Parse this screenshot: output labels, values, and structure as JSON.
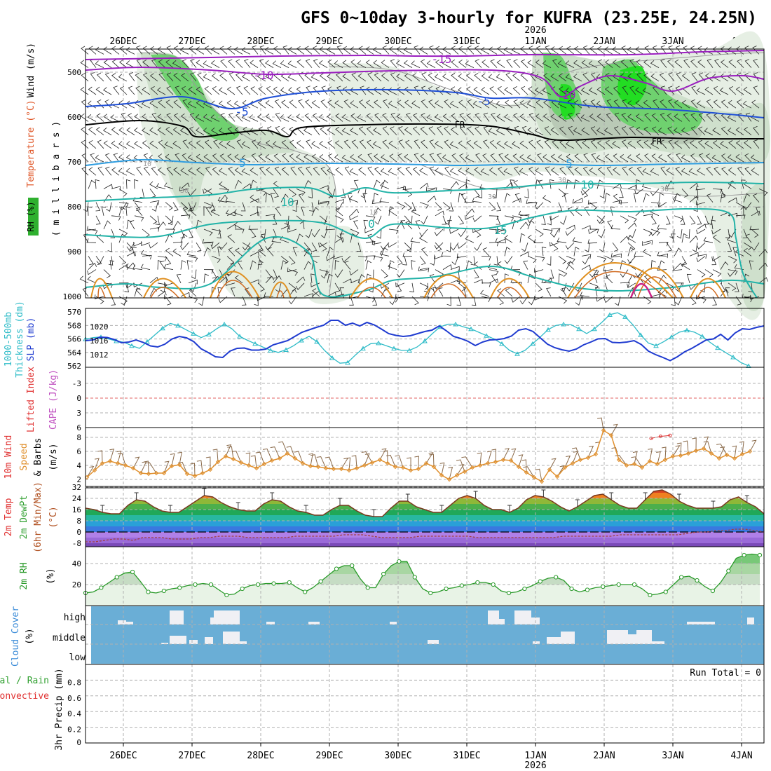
{
  "title": "GFS 0~10day 3-hourly for KUFRA (23.25E, 24.25N)",
  "year_label": "2026",
  "colors": {
    "grid": "#b0b0b0",
    "frame": "#000000",
    "purple": "#9a1fbf",
    "blue": "#1f4fd6",
    "lightblue": "#2f9de0",
    "teal": "#22b3a8",
    "green_rh": "#6fd16f",
    "bright_green": "#22dd22",
    "orange": "#e09020",
    "magenta": "#cc2288",
    "slp": "#1f3bd0",
    "thick": "#2fbcc8",
    "wind10": "#e0902e",
    "rh2m": "#2a9a2a",
    "cloud_bg": "#6aaed6",
    "cloud_fill": "#f0f0f4"
  },
  "chart_data": {
    "x_axis": {
      "date_labels": [
        "26DEC",
        "27DEC",
        "28DEC",
        "29DEC",
        "30DEC",
        "31DEC",
        "1JAN",
        "2JAN",
        "3JAN",
        "4JAN"
      ],
      "year_at": "1JAN",
      "year": "2026"
    },
    "panels": [
      {
        "id": "upper",
        "type": "contour",
        "y_label_parts": [
          {
            "text": "RH (%)",
            "color": "#2aa02a"
          },
          {
            "text": "Temperature (°C)",
            "color": "#e0582a"
          },
          {
            "text": "Wind (m/s)",
            "color": "#000000"
          },
          {
            "text": "( m i l l i b a r s )",
            "color": "#000000"
          }
        ],
        "y_ticks": [
          "500",
          "600",
          "700",
          "800",
          "900",
          "1000"
        ],
        "labels": {
          "t_m15": "-15",
          "t_m10a": "-10",
          "t_m10b": "-10",
          "t_m5a": "-5",
          "t_m5b": "-5",
          "fr1": "FR",
          "fr2": "FR",
          "t_5a": "5",
          "t_5b": "5",
          "t_10a": "10",
          "t_10b": "10",
          "t_0": "0",
          "t_15": "15",
          "rh10": "10",
          "rh30a": "30",
          "rh30b": "30",
          "rh30c": "30",
          "rh30d": "30",
          "rh10b": "10"
        }
      },
      {
        "id": "slp",
        "type": "line",
        "y_label_parts": [
          {
            "text": "1000-500mb",
            "color": "#2fbcc8"
          },
          {
            "text": "Thickness (dm)",
            "color": "#2fbcc8"
          },
          {
            "text": "SLP (mb)",
            "color": "#1f3bd0"
          }
        ],
        "thickness_ticks": [
          "570",
          "568",
          "566",
          "564",
          "562"
        ],
        "slp_ticks": [
          "1020",
          "1016",
          "1012"
        ],
        "series": [
          {
            "name": "Thickness",
            "unit": "dm",
            "values": [
              566.0,
              566.2,
              566.3,
              566.0,
              565.7,
              565.5,
              565.0,
              564.6,
              565.6,
              566.6,
              567.6,
              568.3,
              568.0,
              567.4,
              566.8,
              566.2,
              566.7,
              567.5,
              568.2,
              567.5,
              566.4,
              565.8,
              565.3,
              564.8,
              564.3,
              564.0,
              564.4,
              565.0,
              565.8,
              566.4,
              565.6,
              564.3,
              563.2,
              562.4,
              562.5,
              563.6,
              564.6,
              565.3,
              565.4,
              565.0,
              564.6,
              564.3,
              564.3,
              564.8,
              565.7,
              566.8,
              567.8,
              568.2,
              568.2,
              567.8,
              567.5,
              567.0,
              566.5,
              566.0,
              565.3,
              564.3,
              563.8,
              564.3,
              565.3,
              566.3,
              567.4,
              568.0,
              568.2,
              568.1,
              567.5,
              566.8,
              567.5,
              568.5,
              569.6,
              569.9,
              569.3,
              568.1,
              566.6,
              565.4,
              565.0,
              565.6,
              566.3,
              567.0,
              567.3,
              567.0,
              566.4,
              565.5,
              564.7,
              564.0,
              563.3,
              562.5,
              562.0
            ]
          },
          {
            "name": "SLP",
            "unit": "mb",
            "values": [
              1016.0,
              1016.2,
              1017.0,
              1016.9,
              1016.3,
              1015.4,
              1015.6,
              1016.2,
              1015.5,
              1014.5,
              1014.2,
              1015.0,
              1016.5,
              1017.2,
              1016.8,
              1015.7,
              1013.7,
              1012.6,
              1011.4,
              1011.2,
              1013.0,
              1013.8,
              1013.9,
              1013.3,
              1013.3,
              1013.6,
              1014.8,
              1015.4,
              1016.0,
              1017.2,
              1018.4,
              1019.1,
              1019.8,
              1020.4,
              1021.8,
              1021.8,
              1020.4,
              1021.0,
              1020.2,
              1021.2,
              1020.5,
              1019.3,
              1018.0,
              1017.5,
              1017.2,
              1017.4,
              1018.0,
              1018.6,
              1019.0,
              1020.2,
              1018.8,
              1017.2,
              1016.6,
              1015.8,
              1014.6,
              1015.6,
              1016.2,
              1016.3,
              1016.6,
              1017.3,
              1019.0,
              1019.4,
              1018.6,
              1016.8,
              1015.0,
              1014.0,
              1013.4,
              1013.0,
              1013.6,
              1014.8,
              1015.6,
              1016.5,
              1016.6,
              1015.5,
              1015.4,
              1015.6,
              1016.0,
              1014.9,
              1013.0,
              1012.0,
              1011.2,
              1010.3,
              1011.4,
              1012.8,
              1013.8,
              1015.0,
              1016.2,
              1016.5,
              1017.8,
              1016.2,
              1018.2,
              1019.4,
              1019.2,
              1019.8,
              1020.2
            ]
          }
        ]
      },
      {
        "id": "cape",
        "type": "line",
        "y_label_parts": [
          {
            "text": "CAPE (J/kg)",
            "color": "#c050c0"
          },
          {
            "text": "Lifted Index",
            "color": "#e03030"
          }
        ],
        "y_ticks": [
          "-3",
          "0",
          "3",
          "6"
        ],
        "li_segment": [
          [
            60.0,
            8.2
          ],
          [
            61.0,
            7.8
          ],
          [
            62.0,
            7.6
          ]
        ]
      },
      {
        "id": "wind10",
        "type": "line",
        "y_label_parts": [
          {
            "text": "10m Wind",
            "color": "#e03030"
          },
          {
            "text": "Speed",
            "color": "#e0902e"
          },
          {
            "text": "& Barbs",
            "color": "#000000"
          },
          {
            "text": "(m/s)",
            "color": "#000000"
          }
        ],
        "y_ticks": [
          "8",
          "6",
          "4",
          "2"
        ],
        "series": [
          {
            "name": "10m wind speed",
            "unit": "m/s",
            "values": [
              2.3,
              3.3,
              4.3,
              4.6,
              4.3,
              4.0,
              3.6,
              2.9,
              2.8,
              2.9,
              2.9,
              3.9,
              4.1,
              2.8,
              2.5,
              2.9,
              3.4,
              4.5,
              5.3,
              4.9,
              4.4,
              4.0,
              3.6,
              4.2,
              4.7,
              5.0,
              5.7,
              5.0,
              4.3,
              3.9,
              3.8,
              3.6,
              3.5,
              3.5,
              3.3,
              3.6,
              4.0,
              4.4,
              4.8,
              4.3,
              3.8,
              3.7,
              3.3,
              3.5,
              4.3,
              3.8,
              2.6,
              2.0,
              2.6,
              3.1,
              3.7,
              4.0,
              4.3,
              4.5,
              4.8,
              4.7,
              3.8,
              3.0,
              2.3,
              1.7,
              3.4,
              2.4,
              3.7,
              4.3,
              4.8,
              5.1,
              5.6,
              9.0,
              8.3,
              4.8,
              4.0,
              4.2,
              3.7,
              4.6,
              4.2,
              4.8,
              5.3,
              5.4,
              5.7,
              6.1,
              6.4,
              5.7,
              5.0,
              5.5,
              5.0,
              5.6,
              6.0
            ]
          }
        ]
      },
      {
        "id": "temp",
        "type": "area",
        "y_label_parts": [
          {
            "text": "2m Temp",
            "color": "#e03030"
          },
          {
            "text": "2m DewPt",
            "color": "#30a030"
          },
          {
            "text": "(6hr Min/Max)",
            "color": "#b05020"
          },
          {
            "text": "(°C)",
            "color": "#b05020"
          }
        ],
        "y_ticks": [
          "32",
          "24",
          "16",
          "8",
          "0",
          "-8"
        ],
        "series": [
          {
            "name": "2m Temp",
            "unit": "°C",
            "values": [
              17,
              16,
              14,
              13,
              13,
              19,
              23,
              22,
              18,
              15,
              14,
              14,
              18,
              22,
              26,
              25,
              21,
              18,
              16,
              15,
              15,
              20,
              23,
              22,
              18,
              15,
              14,
              12,
              12,
              16,
              19,
              19,
              15,
              12,
              11,
              11,
              17,
              22,
              22,
              18,
              16,
              14,
              14,
              19,
              24,
              26,
              24,
              19,
              16,
              16,
              14,
              17,
              23,
              26,
              25,
              22,
              18,
              15,
              18,
              22,
              26,
              27,
              23,
              19,
              17,
              17,
              23,
              29,
              30,
              27,
              22,
              19,
              17,
              17,
              17,
              18,
              23,
              25,
              21,
              18,
              13
            ]
          },
          {
            "name": "2m DewPt",
            "unit": "°C",
            "values": [
              -7,
              -7,
              -6,
              -5,
              -5,
              -6,
              -4,
              -4,
              -4,
              -5,
              -5,
              -5,
              -4,
              -4,
              -3,
              -3,
              -3,
              -4,
              -4,
              -4,
              -4,
              -4,
              -3,
              -3,
              -3,
              -3,
              -3,
              -2,
              -2,
              -2,
              -3,
              -4,
              -4,
              -4,
              -4,
              -3,
              -3,
              -3,
              -3,
              -3,
              -3,
              -4,
              -4,
              -4,
              -4,
              -4,
              -4,
              -4,
              -4,
              -4,
              -3,
              -3,
              -3,
              -3,
              -3,
              -3,
              -2,
              -2,
              -2,
              -2,
              -2,
              -2,
              -2,
              -1,
              0,
              0,
              1,
              1,
              2,
              2,
              1,
              0
            ]
          }
        ]
      },
      {
        "id": "rh2m",
        "type": "area",
        "y_label_parts": [
          {
            "text": "2m RH",
            "color": "#2a9a2a"
          },
          {
            "text": "(%)",
            "color": "#000000"
          }
        ],
        "y_ticks": [
          "40",
          "20"
        ],
        "series": [
          {
            "name": "2m RH",
            "unit": "%",
            "values": [
              12,
              13,
              17,
              22,
              27,
              31,
              32,
              23,
              13,
              12,
              14,
              16,
              17,
              19,
              20,
              21,
              20,
              15,
              10,
              11,
              16,
              19,
              20,
              21,
              21,
              21,
              22,
              17,
              13,
              17,
              23,
              29,
              35,
              38,
              38,
              26,
              17,
              17,
              30,
              38,
              42,
              42,
              27,
              16,
              12,
              13,
              16,
              17,
              19,
              20,
              22,
              22,
              20,
              14,
              12,
              13,
              16,
              19,
              23,
              26,
              27,
              24,
              16,
              13,
              15,
              17,
              18,
              19,
              20,
              20,
              20,
              16,
              10,
              11,
              13,
              20,
              27,
              28,
              24,
              18,
              14,
              22,
              33,
              45,
              48,
              49,
              48
            ]
          }
        ]
      },
      {
        "id": "cloud",
        "type": "area",
        "y_label_parts": [
          {
            "text": "Cloud Cover",
            "color": "#3a8bd8"
          },
          {
            "text": "(%)",
            "color": "#000000"
          }
        ],
        "layer_labels": [
          "high",
          "middle",
          "low"
        ]
      },
      {
        "id": "precip",
        "type": "bar",
        "y_label_parts": [
          {
            "text": "3hr Precip (mm)",
            "color": "#000000"
          },
          {
            "text": "Total / Rain",
            "color": "#30a030"
          },
          {
            "text": "Convective",
            "color": "#e03030"
          }
        ],
        "y_ticks": [
          "0.8",
          "0.6",
          "0.4",
          "0.2",
          "0"
        ],
        "run_total_label": "Run Total = 0",
        "values": []
      }
    ]
  }
}
